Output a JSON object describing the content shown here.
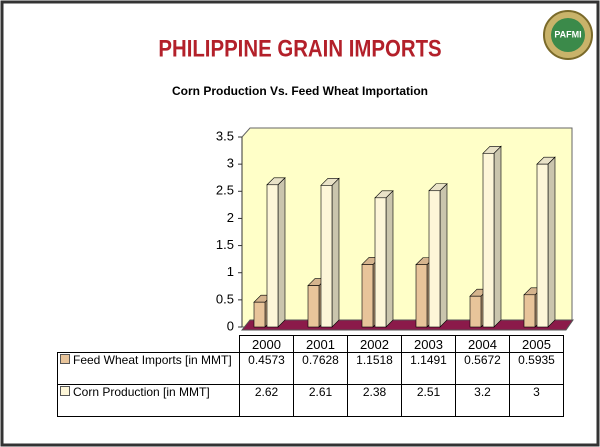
{
  "chart_data": {
    "type": "bar3d",
    "title": "PHILIPPINE GRAIN IMPORTS",
    "subtitle": "Corn Production Vs. Feed Wheat Importation",
    "logo": "PAFMI",
    "categories": [
      "2000",
      "2001",
      "2002",
      "2003",
      "2004",
      "2005"
    ],
    "series": [
      {
        "name": "Feed Wheat Imports [in MMT]",
        "color": "#e8c49a",
        "values": [
          0.4573,
          0.7628,
          1.1518,
          1.1491,
          0.5672,
          0.5935
        ]
      },
      {
        "name": "Corn Production [in MMT]",
        "color": "#fdf6d8",
        "values": [
          2.62,
          2.61,
          2.38,
          2.51,
          3.2,
          3
        ]
      }
    ],
    "ylim": [
      0,
      3.5
    ],
    "yticks": [
      0,
      0.5,
      1,
      1.5,
      2,
      2.5,
      3,
      3.5
    ]
  }
}
